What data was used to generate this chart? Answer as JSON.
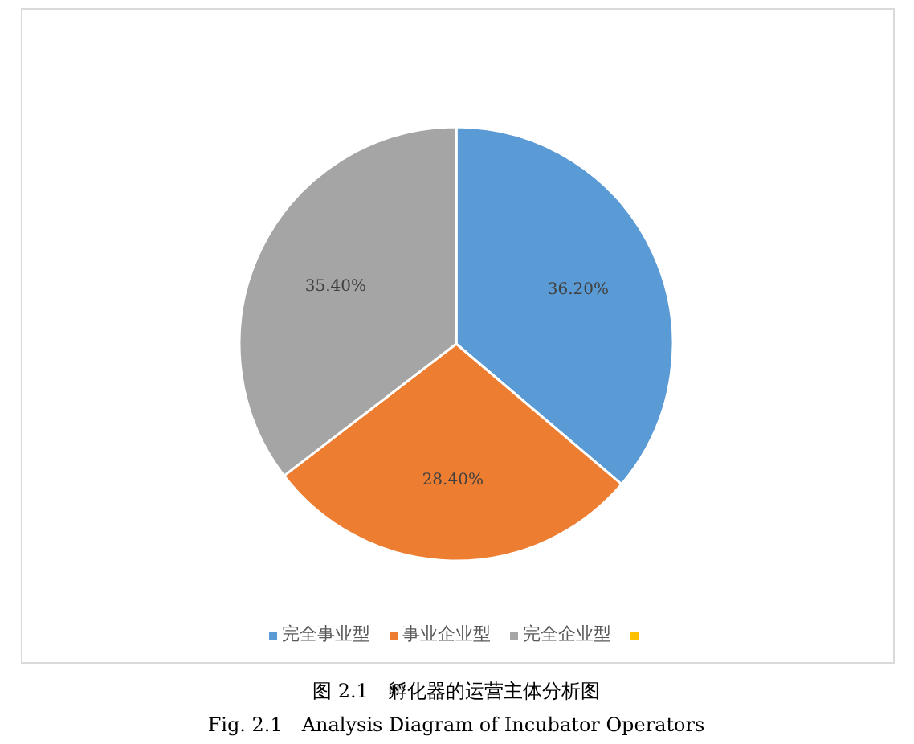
{
  "chart_data": {
    "type": "pie",
    "title": "图 2.1　孵化器的运营主体分析图",
    "subtitle": "Fig. 2.1　Analysis Diagram of Incubator Operators",
    "categories": [
      "完全事业型",
      "事业企业型",
      "完全企业型",
      null
    ],
    "values": [
      36.2,
      28.4,
      35.4,
      0
    ],
    "value_labels": [
      "36.20%",
      "28.40%",
      "35.40%",
      null
    ],
    "colors": [
      "#5b9bd5",
      "#ed7d31",
      "#a5a5a5",
      "#ffc000"
    ],
    "legend": "bottom"
  }
}
